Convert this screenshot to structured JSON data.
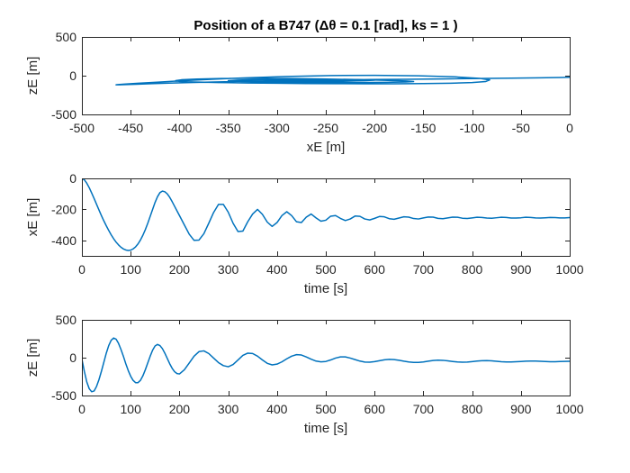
{
  "colors": {
    "series": "#0072BD",
    "axes": "#262626",
    "background": "#ffffff"
  },
  "chart_data": [
    {
      "type": "line",
      "title": "Position of a B747 (Δθ = 0.1 [rad], ks = 1 )",
      "xlabel": "xE [m]",
      "ylabel": "zE [m]",
      "xlim": [
        -500,
        0
      ],
      "ylim": [
        -500,
        500
      ],
      "xticks": [
        -500,
        -450,
        -400,
        -350,
        -300,
        -250,
        -200,
        -150,
        -100,
        -50,
        0
      ],
      "yticks": [
        -500,
        0,
        500
      ],
      "grid": false,
      "series": [
        {
          "x": [
            0,
            -9,
            -31,
            -60,
            -94,
            -130,
            -167,
            -204,
            -240,
            -274,
            -306,
            -336,
            -364,
            -389,
            -411,
            -429,
            -444,
            -455,
            -462,
            -465,
            -463,
            -455,
            -442,
            -423,
            -398,
            -367,
            -331,
            -290,
            -245,
            -200,
            -155,
            -118,
            -92,
            -82,
            -86,
            -100,
            -122,
            -150,
            -180,
            -210,
            -240,
            -270,
            -300,
            -330,
            -360,
            -385,
            -400,
            -404,
            -398,
            -382,
            -357,
            -325,
            -290,
            -255,
            -220,
            -190,
            -168,
            -160,
            -168,
            -188,
            -218,
            -255,
            -290,
            -322,
            -343,
            -350,
            -340,
            -315,
            -280,
            -255,
            -230,
            -210,
            -200,
            -210,
            -232,
            -258,
            -282,
            -300,
            -310,
            -303,
            -285,
            -262,
            -240,
            -222,
            -215,
            -222,
            -240,
            -262,
            -280,
            -290,
            -285,
            -268,
            -250,
            -236,
            -230,
            -238,
            -255,
            -270,
            -276,
            -270,
            -256,
            -244,
            -241,
            -248,
            -258,
            -262,
            -255
          ],
          "y": [
            -20,
            -23,
            -27,
            -32,
            -37,
            -42,
            -46,
            -50,
            -55,
            -60,
            -66,
            -73,
            -81,
            -88,
            -96,
            -103,
            -110,
            -115,
            -118,
            -118,
            -115,
            -108,
            -98,
            -84,
            -66,
            -46,
            -27,
            -10,
            2,
            5,
            -1,
            -15,
            -35,
            -55,
            -75,
            -88,
            -97,
            -102,
            -104,
            -104,
            -103,
            -101,
            -98,
            -94,
            -89,
            -82,
            -74,
            -64,
            -53,
            -43,
            -36,
            -34,
            -36,
            -42,
            -50,
            -59,
            -68,
            -76,
            -82,
            -86,
            -88,
            -87,
            -84,
            -79,
            -72,
            -64,
            -56,
            -50,
            -47,
            -47,
            -49,
            -53,
            -58,
            -64,
            -70,
            -74,
            -76,
            -75,
            -71,
            -65,
            -58,
            -53,
            -50,
            -51,
            -55,
            -61,
            -67,
            -71,
            -72,
            -70,
            -65,
            -59,
            -55,
            -54,
            -57,
            -62,
            -66,
            -68,
            -66,
            -62,
            -58,
            -56,
            -57,
            -60,
            -63,
            -64,
            -62
          ]
        }
      ]
    },
    {
      "type": "line",
      "xlabel": "time [s]",
      "ylabel": "xE [m]",
      "xlim": [
        0,
        1000
      ],
      "ylim": [
        -500,
        0
      ],
      "xticks": [
        0,
        100,
        200,
        300,
        400,
        500,
        600,
        700,
        800,
        900,
        1000
      ],
      "yticks": [
        -400,
        -200,
        0
      ],
      "grid": false,
      "series": [
        {
          "x": [
            0,
            5,
            10,
            15,
            20,
            25,
            30,
            35,
            40,
            45,
            50,
            55,
            60,
            65,
            70,
            75,
            80,
            85,
            90,
            95,
            100,
            105,
            110,
            115,
            120,
            125,
            130,
            135,
            140,
            145,
            150,
            155,
            160,
            165,
            170,
            175,
            180,
            185,
            190,
            195,
            200,
            210,
            220,
            230,
            240,
            250,
            260,
            270,
            280,
            290,
            300,
            310,
            320,
            330,
            340,
            350,
            360,
            370,
            380,
            390,
            400,
            410,
            420,
            430,
            440,
            450,
            460,
            470,
            480,
            490,
            500,
            510,
            520,
            530,
            540,
            550,
            560,
            570,
            580,
            590,
            600,
            610,
            620,
            630,
            640,
            650,
            660,
            670,
            680,
            690,
            700,
            710,
            720,
            730,
            740,
            750,
            760,
            770,
            780,
            790,
            800,
            810,
            820,
            830,
            840,
            850,
            860,
            870,
            880,
            890,
            900,
            910,
            920,
            930,
            940,
            950,
            960,
            970,
            980,
            990,
            1000
          ],
          "y": [
            0,
            -9,
            -31,
            -60,
            -94,
            -130,
            -167,
            -204,
            -240,
            -274,
            -306,
            -336,
            -364,
            -389,
            -411,
            -429,
            -444,
            -455,
            -462,
            -465,
            -463,
            -455,
            -442,
            -423,
            -398,
            -367,
            -331,
            -290,
            -245,
            -200,
            -155,
            -118,
            -92,
            -82,
            -86,
            -100,
            -122,
            -150,
            -180,
            -210,
            -240,
            -300,
            -360,
            -400,
            -398,
            -357,
            -290,
            -220,
            -168,
            -168,
            -218,
            -290,
            -343,
            -340,
            -280,
            -230,
            -200,
            -232,
            -282,
            -310,
            -285,
            -240,
            -215,
            -240,
            -280,
            -285,
            -250,
            -230,
            -255,
            -276,
            -270,
            -244,
            -240,
            -258,
            -272,
            -262,
            -243,
            -245,
            -262,
            -268,
            -258,
            -246,
            -248,
            -260,
            -264,
            -256,
            -248,
            -250,
            -259,
            -262,
            -255,
            -249,
            -250,
            -258,
            -260,
            -255,
            -250,
            -251,
            -257,
            -259,
            -255,
            -251,
            -252,
            -256,
            -257,
            -254,
            -251,
            -252,
            -256,
            -256,
            -254,
            -251,
            -252,
            -255,
            -256,
            -254,
            -252,
            -253,
            -255,
            -255,
            -253
          ]
        }
      ]
    },
    {
      "type": "line",
      "xlabel": "time [s]",
      "ylabel": "zE [m]",
      "xlim": [
        0,
        1000
      ],
      "ylim": [
        -500,
        500
      ],
      "xticks": [
        0,
        100,
        200,
        300,
        400,
        500,
        600,
        700,
        800,
        900,
        1000
      ],
      "yticks": [
        -500,
        0,
        500
      ],
      "grid": false,
      "series": [
        {
          "x": [
            0,
            5,
            10,
            15,
            20,
            25,
            30,
            35,
            40,
            45,
            50,
            55,
            60,
            65,
            70,
            75,
            80,
            85,
            90,
            95,
            100,
            105,
            110,
            115,
            120,
            125,
            130,
            135,
            140,
            145,
            150,
            155,
            160,
            165,
            170,
            175,
            180,
            185,
            190,
            195,
            200,
            210,
            220,
            230,
            240,
            250,
            260,
            270,
            280,
            290,
            300,
            310,
            320,
            330,
            340,
            350,
            360,
            370,
            380,
            390,
            400,
            410,
            420,
            430,
            440,
            450,
            460,
            470,
            480,
            490,
            500,
            510,
            520,
            530,
            540,
            550,
            560,
            570,
            580,
            590,
            600,
            610,
            620,
            630,
            640,
            650,
            660,
            670,
            680,
            690,
            700,
            710,
            720,
            730,
            740,
            750,
            760,
            770,
            780,
            790,
            800,
            810,
            820,
            830,
            840,
            850,
            860,
            870,
            880,
            890,
            900,
            910,
            920,
            930,
            940,
            950,
            960,
            970,
            980,
            990,
            1000
          ],
          "y": [
            -20,
            -180,
            -320,
            -410,
            -450,
            -440,
            -380,
            -290,
            -180,
            -60,
            60,
            160,
            230,
            260,
            245,
            190,
            110,
            20,
            -80,
            -170,
            -245,
            -300,
            -330,
            -330,
            -300,
            -240,
            -160,
            -70,
            20,
            100,
            155,
            175,
            160,
            120,
            60,
            -10,
            -80,
            -140,
            -185,
            -210,
            -215,
            -160,
            -70,
            20,
            80,
            90,
            55,
            -5,
            -65,
            -105,
            -120,
            -90,
            -30,
            30,
            60,
            55,
            20,
            -30,
            -75,
            -95,
            -85,
            -55,
            -15,
            20,
            40,
            35,
            10,
            -20,
            -45,
            -55,
            -50,
            -30,
            -5,
            10,
            10,
            -5,
            -25,
            -45,
            -58,
            -60,
            -52,
            -40,
            -28,
            -22,
            -25,
            -34,
            -46,
            -56,
            -62,
            -62,
            -56,
            -46,
            -37,
            -33,
            -35,
            -42,
            -50,
            -57,
            -60,
            -58,
            -52,
            -45,
            -40,
            -39,
            -42,
            -48,
            -53,
            -56,
            -57,
            -54,
            -50,
            -46,
            -44,
            -45,
            -48,
            -51,
            -53,
            -53,
            -51,
            -49,
            -47
          ]
        }
      ]
    }
  ]
}
